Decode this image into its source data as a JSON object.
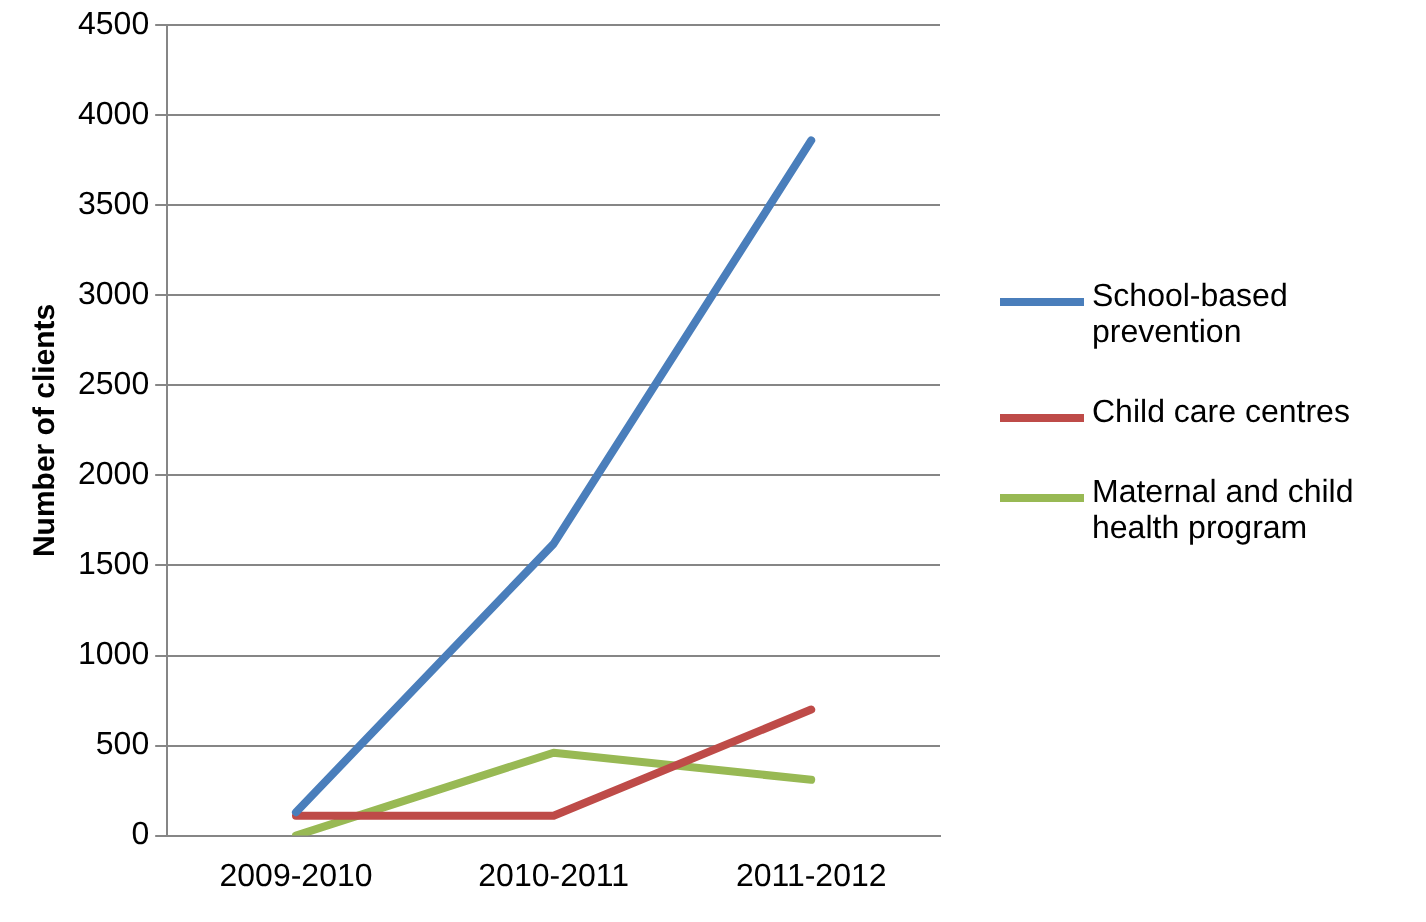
{
  "chart_data": {
    "type": "line",
    "ylabel": "Number of clients",
    "categories": [
      "2009-2010",
      "2010-2011",
      "2011-2012"
    ],
    "series": [
      {
        "name": "School-based prevention",
        "color": "#4a7ebb",
        "values": [
          130,
          1620,
          3860
        ]
      },
      {
        "name": "Child care centres",
        "color": "#be4b48",
        "values": [
          110,
          110,
          700
        ]
      },
      {
        "name": "Maternal and child health program",
        "color": "#98b954",
        "values": [
          0,
          460,
          310
        ]
      }
    ],
    "ylim": [
      0,
      4500
    ],
    "yticks": [
      0,
      500,
      1000,
      1500,
      2000,
      2500,
      3000,
      3500,
      4000,
      4500
    ],
    "grid": "y",
    "legend": "right",
    "marker": "none",
    "line_style": "solid"
  }
}
